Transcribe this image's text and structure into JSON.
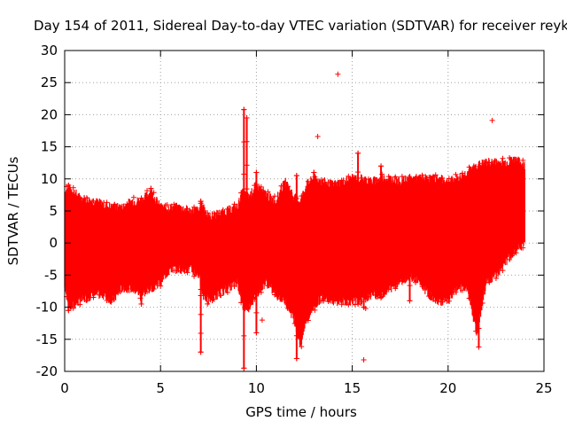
{
  "chart_data": {
    "type": "scatter",
    "title": "Day 154 of 2011, Sidereal Day-to-day VTEC variation (SDTVAR) for receiver reyk",
    "xlabel": "GPS time / hours",
    "ylabel": "SDTVAR / TECUs",
    "xlim": [
      0,
      25
    ],
    "ylim": [
      -20,
      30
    ],
    "x_ticks": [
      "0",
      "5",
      "10",
      "15",
      "20",
      "25"
    ],
    "y_ticks": [
      "-20",
      "-15",
      "-10",
      "-5",
      "0",
      "5",
      "10",
      "15",
      "20",
      "25",
      "30"
    ],
    "grid": true,
    "marker": "+",
    "color": "#ff0000",
    "series": [
      {
        "name": "SDTVAR",
        "envelope": {
          "x": [
            0,
            0.3,
            0.8,
            1.5,
            2,
            2.5,
            3,
            3.5,
            4,
            4.5,
            5,
            5.5,
            6,
            6.5,
            7,
            7.2,
            7.5,
            8,
            8.5,
            9,
            9.3,
            9.6,
            10,
            10.5,
            11,
            11.5,
            12,
            12.3,
            12.6,
            13,
            13.5,
            14,
            14.5,
            15,
            15.5,
            16,
            16.5,
            17,
            17.5,
            18,
            18.5,
            19,
            19.5,
            20,
            20.5,
            21,
            21.5,
            22,
            22.5,
            23,
            23.5,
            24
          ],
          "upper": [
            8,
            8.5,
            7,
            6.5,
            6,
            5.5,
            5.5,
            6.5,
            6.5,
            8,
            5.5,
            5.5,
            5.5,
            5,
            5,
            6,
            4,
            4.5,
            5,
            5.5,
            8,
            7,
            9,
            7.5,
            6.5,
            9.5,
            7,
            6.5,
            9,
            10,
            9.5,
            9,
            9.5,
            10,
            10,
            9.5,
            10,
            10,
            9.5,
            10,
            10,
            10,
            10,
            9.5,
            10,
            11,
            12,
            12.5,
            12.5,
            12.5,
            13,
            12
          ],
          "lower": [
            -7,
            -10,
            -9,
            -8,
            -8,
            -9,
            -7,
            -7,
            -8,
            -7,
            -6,
            -4,
            -4,
            -4,
            -5,
            -8,
            -9,
            -8,
            -7,
            -6,
            -10,
            -10,
            -8,
            -6,
            -8,
            -9,
            -12,
            -16,
            -12,
            -10,
            -8,
            -9,
            -9,
            -9,
            -9,
            -8,
            -8,
            -7,
            -6,
            -5,
            -6,
            -8,
            -9,
            -9,
            -7,
            -7,
            -14,
            -6,
            -5,
            -3,
            -1,
            0
          ]
        },
        "spikes": [
          {
            "x": 0.2,
            "ymin": -10.5,
            "ymax": 9
          },
          {
            "x": 2.6,
            "ymin": -7.5,
            "ymax": 6
          },
          {
            "x": 4.0,
            "ymin": -9.5,
            "ymax": 7
          },
          {
            "x": 4.5,
            "ymin": -6.2,
            "ymax": 8.5
          },
          {
            "x": 7.1,
            "ymin": -17,
            "ymax": 6.5
          },
          {
            "x": 9.35,
            "ymin": -19.5,
            "ymax": 20.8
          },
          {
            "x": 9.5,
            "ymin": -10,
            "ymax": 19.5
          },
          {
            "x": 10.0,
            "ymin": -14,
            "ymax": 11
          },
          {
            "x": 12.1,
            "ymin": -18,
            "ymax": 10.5
          },
          {
            "x": 13.0,
            "ymin": -8,
            "ymax": 11
          },
          {
            "x": 13.5,
            "ymin": -9,
            "ymax": 8.5
          },
          {
            "x": 15.3,
            "ymin": -9.5,
            "ymax": 14
          },
          {
            "x": 15.6,
            "ymin": -10,
            "ymax": 7
          },
          {
            "x": 16.5,
            "ymin": -8.5,
            "ymax": 12
          },
          {
            "x": 18.0,
            "ymin": -9,
            "ymax": 10
          },
          {
            "x": 21.6,
            "ymin": -16.2,
            "ymax": 7
          },
          {
            "x": 23.3,
            "ymin": -2,
            "ymax": 13
          }
        ],
        "outliers": [
          {
            "x": 14.25,
            "y": 26.3
          },
          {
            "x": 13.2,
            "y": 16.6
          },
          {
            "x": 22.3,
            "y": 19.1
          },
          {
            "x": 15.6,
            "y": -18.2
          },
          {
            "x": 15.7,
            "y": -10.2
          },
          {
            "x": 4.4,
            "y": -6.3
          },
          {
            "x": 10.3,
            "y": -12
          },
          {
            "x": 19.1,
            "y": -8.2
          }
        ]
      }
    ]
  }
}
